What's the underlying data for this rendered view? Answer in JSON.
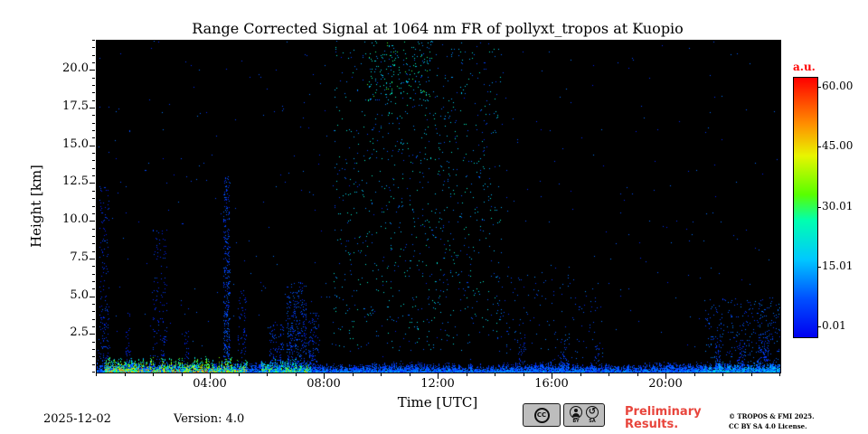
{
  "figure": {
    "station": "Kuopio",
    "instrument": "pollyxt_tropos"
  },
  "chart_data": {
    "type": "heatmap",
    "title": "Range Corrected Signal at 1064 nm FR of pollyxt_tropos at Kuopio",
    "xlabel": "Time [UTC]",
    "ylabel": "Height [km]",
    "x_range": [
      0,
      24
    ],
    "y_range_km": [
      0,
      22
    ],
    "background_value_au": 0,
    "background_color": "#000000",
    "x_ticks": [
      {
        "value": 4,
        "label": "04:00"
      },
      {
        "value": 8,
        "label": "08:00"
      },
      {
        "value": 12,
        "label": "12:00"
      },
      {
        "value": 16,
        "label": "16:00"
      },
      {
        "value": 20,
        "label": "20:00"
      }
    ],
    "y_ticks": [
      {
        "value": 2.5,
        "label": "2.5"
      },
      {
        "value": 5.0,
        "label": "5.0"
      },
      {
        "value": 7.5,
        "label": "7.5"
      },
      {
        "value": 10.0,
        "label": "10.0"
      },
      {
        "value": 12.5,
        "label": "12.5"
      },
      {
        "value": 15.0,
        "label": "15.0"
      },
      {
        "value": 17.5,
        "label": "17.5"
      },
      {
        "value": 20.0,
        "label": "20.0"
      }
    ],
    "colorbar": {
      "label": "a.u.",
      "label_color": "#ff0000",
      "value_min": 0,
      "value_max": 60,
      "tick_labels": [
        "60.00",
        "45.00",
        "30.01",
        "15.01",
        "0.01"
      ],
      "stops": [
        [
          0.0,
          "#0000f0"
        ],
        [
          0.15,
          "#0050ff"
        ],
        [
          0.3,
          "#00c8ff"
        ],
        [
          0.45,
          "#00ffb0"
        ],
        [
          0.55,
          "#58ff00"
        ],
        [
          0.7,
          "#e8f500"
        ],
        [
          0.82,
          "#ff9000"
        ],
        [
          1.0,
          "#ff0000"
        ]
      ]
    },
    "features": [
      {
        "kind": "column",
        "t": 0.25,
        "h_top_km": 12.5,
        "width_h": 0.35,
        "density": 0.25,
        "value_au": [
          2,
          9
        ],
        "note": "sparse streak at left edge"
      },
      {
        "kind": "column",
        "t": 1.1,
        "h_top_km": 4.0,
        "width_h": 0.2,
        "density": 0.3,
        "value_au": [
          2,
          8
        ]
      },
      {
        "kind": "column",
        "t": 2.2,
        "h_top_km": 9.5,
        "width_h": 0.5,
        "density": 0.18,
        "value_au": [
          2,
          9
        ]
      },
      {
        "kind": "column",
        "t": 3.1,
        "h_top_km": 3.0,
        "width_h": 0.25,
        "density": 0.3,
        "value_au": [
          2,
          8
        ]
      },
      {
        "kind": "column",
        "t": 4.55,
        "h_top_km": 13.0,
        "width_h": 0.22,
        "density": 0.85,
        "value_au": [
          3,
          12
        ],
        "note": "strong vertical streak ~04:30"
      },
      {
        "kind": "column",
        "t": 5.1,
        "h_top_km": 5.5,
        "width_h": 0.3,
        "density": 0.35,
        "value_au": [
          2,
          9
        ]
      },
      {
        "kind": "column",
        "t": 6.3,
        "h_top_km": 3.2,
        "width_h": 0.5,
        "density": 0.5,
        "value_au": [
          3,
          10
        ]
      },
      {
        "kind": "column",
        "t": 7.0,
        "h_top_km": 6.0,
        "width_h": 0.7,
        "density": 0.55,
        "value_au": [
          3,
          12
        ]
      },
      {
        "kind": "column",
        "t": 7.6,
        "h_top_km": 4.0,
        "width_h": 0.4,
        "density": 0.5,
        "value_au": [
          3,
          10
        ]
      },
      {
        "kind": "speckle_fan",
        "t0": 8.3,
        "t1": 14.2,
        "h0_km": 1.5,
        "h1_km": 22,
        "count": 900,
        "value_au": [
          6,
          26
        ],
        "note": "daytime background-noise speckle plume"
      },
      {
        "kind": "speckle_fan",
        "t0": 9.5,
        "t1": 11.8,
        "h0_km": 18,
        "h1_km": 22,
        "count": 170,
        "value_au": [
          12,
          32
        ],
        "note": "denser green speckle near top 10:00-12:00"
      },
      {
        "kind": "speckle_fan",
        "t0": 14.0,
        "t1": 17.8,
        "h0_km": 0.5,
        "h1_km": 6.5,
        "count": 140,
        "value_au": [
          4,
          14
        ]
      },
      {
        "kind": "column",
        "t": 14.9,
        "h_top_km": 2.6,
        "width_h": 0.3,
        "density": 0.4,
        "value_au": [
          3,
          10
        ]
      },
      {
        "kind": "column",
        "t": 16.4,
        "h_top_km": 2.2,
        "width_h": 0.25,
        "density": 0.45,
        "value_au": [
          3,
          10
        ]
      },
      {
        "kind": "column",
        "t": 17.6,
        "h_top_km": 1.8,
        "width_h": 0.3,
        "density": 0.4,
        "value_au": [
          3,
          10
        ]
      },
      {
        "kind": "speckle_fan",
        "t0": 21.3,
        "t1": 24,
        "h0_km": 0.5,
        "h1_km": 5,
        "count": 280,
        "value_au": [
          4,
          14
        ]
      },
      {
        "kind": "column",
        "t": 21.8,
        "h_top_km": 2.5,
        "width_h": 0.2,
        "density": 0.6,
        "value_au": [
          3,
          10
        ]
      },
      {
        "kind": "column",
        "t": 22.6,
        "h_top_km": 2.3,
        "width_h": 0.25,
        "density": 0.6,
        "value_au": [
          3,
          10
        ]
      },
      {
        "kind": "column",
        "t": 23.4,
        "h_top_km": 2.6,
        "width_h": 0.4,
        "density": 0.7,
        "value_au": [
          3,
          11
        ]
      },
      {
        "kind": "speckle_fan",
        "t0": 0,
        "t1": 24,
        "h0_km": 0.5,
        "h1_km": 22,
        "count": 420,
        "value_au": [
          3,
          12
        ],
        "note": "sparse background noise everywhere"
      },
      {
        "kind": "surface_band",
        "t0": 0,
        "t1": 24,
        "h_base_km": 0,
        "h_top_km": 0.45,
        "value_au": [
          4,
          18
        ],
        "note": "continuous near-surface layer"
      },
      {
        "kind": "surface_plume",
        "t0": 0.3,
        "t1": 5.3,
        "h_top_km": 0.95,
        "value_au": [
          15,
          55
        ],
        "note": "bright green/yellow surface signal early morning"
      },
      {
        "kind": "surface_plume",
        "t0": 5.8,
        "t1": 7.5,
        "h_top_km": 0.8,
        "value_au": [
          12,
          45
        ]
      },
      {
        "kind": "surface_plume",
        "t0": 21.3,
        "t1": 24,
        "h_top_km": 0.7,
        "value_au": [
          8,
          25
        ]
      }
    ]
  },
  "footer": {
    "date": "2025-12-02",
    "version": "Version: 4.0",
    "preliminary": "Preliminary\nResults.",
    "preliminary_color": "#e8453c",
    "copyright": "© TROPOS & FMI 2025.\nCC BY SA 4.0 License.",
    "cc_badge": {
      "plate1": "CC",
      "by_label": "BY",
      "sa_label": "SA",
      "sa_glyph": "↺"
    }
  }
}
